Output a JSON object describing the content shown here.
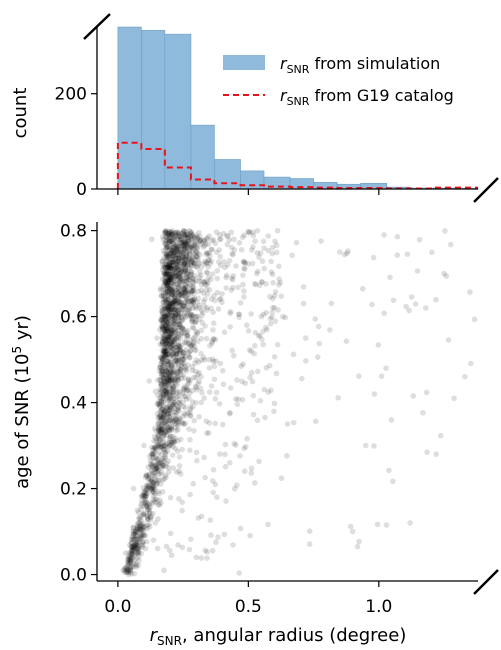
{
  "chart_data": [
    {
      "type": "bar",
      "panel": "top histogram",
      "ylabel": "count",
      "ylim": [
        0,
        340
      ],
      "xlim": [
        -0.08,
        1.38
      ],
      "yticks": [
        "0",
        "200"
      ],
      "bin_edges": [
        0.0,
        0.09,
        0.18,
        0.28,
        0.37,
        0.47,
        0.56,
        0.66,
        0.75,
        0.84,
        0.93,
        1.03,
        1.12,
        1.21,
        1.31,
        1.38
      ],
      "series": [
        {
          "name_prefix": "r",
          "name_sub": "SNR",
          "name_suffix": " from simulation",
          "style": "filled steps",
          "color": "#8fbadc",
          "values": [
            340,
            333,
            325,
            134,
            62,
            38,
            25,
            22,
            14,
            10,
            12,
            4,
            2,
            2,
            1
          ]
        },
        {
          "name_prefix": "r",
          "name_sub": "SNR",
          "name_suffix": " from G19 catalog",
          "style": "dashed step line",
          "color": "#e8141b",
          "values": [
            97,
            84,
            45,
            20,
            12,
            8,
            5,
            4,
            3,
            2,
            2,
            1,
            1,
            3,
            3
          ]
        }
      ],
      "legend_position": "upper right"
    },
    {
      "type": "scatter",
      "panel": "bottom scatter",
      "xlabel_prefix": "r",
      "xlabel_sub": "SNR",
      "xlabel_suffix": ", angular radius (degree)",
      "ylabel_prefix": "age of SNR (10",
      "ylabel_sup": "5",
      "ylabel_suffix": " yr)",
      "xlim": [
        -0.08,
        1.38
      ],
      "ylim": [
        -0.015,
        0.82
      ],
      "xticks": [
        "0.0",
        "0.5",
        "1.0"
      ],
      "yticks": [
        "0.0",
        "0.2",
        "0.4",
        "0.6",
        "0.8"
      ],
      "point_color": "#000000",
      "point_alpha": 0.13,
      "n_points": 2400,
      "points_sample": [
        [
          0.02,
          0.01
        ],
        [
          0.05,
          0.03
        ],
        [
          0.03,
          0.05
        ],
        [
          0.08,
          0.12
        ],
        [
          0.06,
          0.2
        ],
        [
          0.1,
          0.3
        ],
        [
          0.12,
          0.45
        ],
        [
          0.15,
          0.55
        ],
        [
          0.18,
          0.7
        ],
        [
          0.13,
          0.78
        ],
        [
          0.25,
          0.65
        ],
        [
          0.35,
          0.5
        ],
        [
          0.42,
          0.72
        ],
        [
          0.55,
          0.6
        ],
        [
          0.65,
          0.35
        ],
        [
          0.72,
          0.55
        ],
        [
          0.85,
          0.75
        ],
        [
          0.95,
          0.3
        ],
        [
          1.02,
          0.79
        ],
        [
          1.12,
          0.12
        ],
        [
          1.18,
          0.62
        ],
        [
          1.25,
          0.7
        ],
        [
          1.33,
          0.46
        ],
        [
          1.22,
          0.28
        ],
        [
          0.9,
          0.1
        ]
      ]
    }
  ]
}
